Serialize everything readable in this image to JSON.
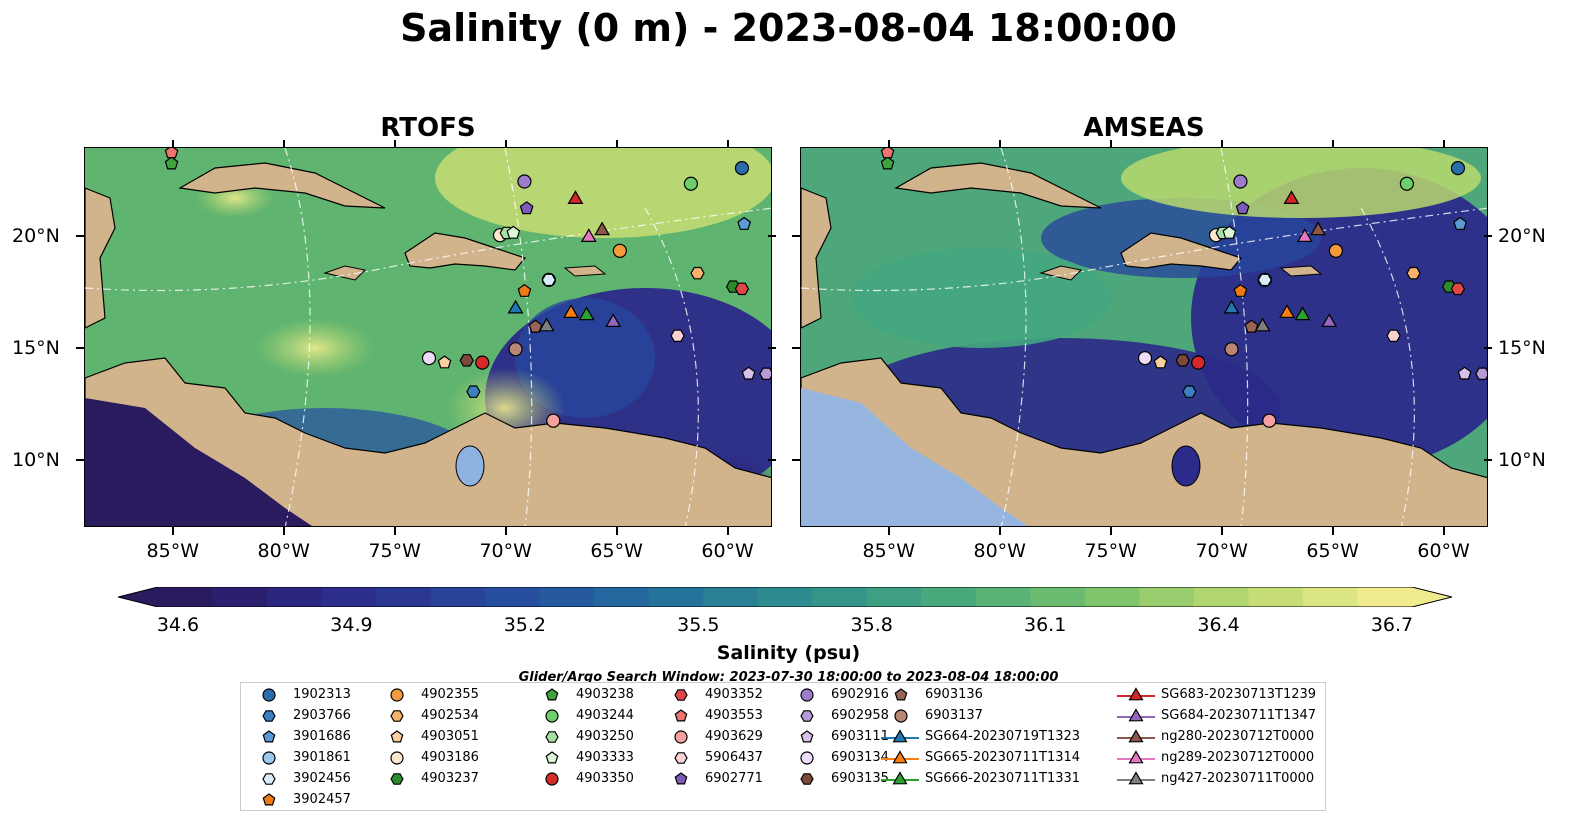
{
  "title": "Salinity (0 m) - 2023-08-04 18:00:00",
  "panels": [
    {
      "title": "RTOFS"
    },
    {
      "title": "AMSEAS"
    }
  ],
  "axes": {
    "lon_labels": [
      "85°W",
      "80°W",
      "75°W",
      "70°W",
      "65°W",
      "60°W"
    ],
    "lat_labels": [
      "20°N",
      "15°N",
      "10°N"
    ]
  },
  "colorbar": {
    "label": "Salinity (psu)",
    "ticks": [
      "34.6",
      "34.9",
      "35.2",
      "35.5",
      "35.8",
      "36.1",
      "36.4",
      "36.7"
    ],
    "colors": [
      "#2a1b5f",
      "#2c2a8a",
      "#28479e",
      "#226a9e",
      "#2e8b8f",
      "#44a77f",
      "#73c06b",
      "#b8d86f",
      "#f0ec8e"
    ]
  },
  "search_window": "Glider/Argo Search Window: 2023-07-30 18:00:00 to 2023-08-04 18:00:00",
  "legend": {
    "columns": [
      [
        {
          "label": "1902313",
          "marker": "circle",
          "color": "#2b6cad"
        },
        {
          "label": "2903766",
          "marker": "hexagon",
          "color": "#3d7fbf"
        },
        {
          "label": "3901686",
          "marker": "pentagon",
          "color": "#5b9bd5"
        },
        {
          "label": "3901861",
          "marker": "circle",
          "color": "#9cc8ee"
        },
        {
          "label": "3902456",
          "marker": "hexagon",
          "color": "#d8ecfb"
        },
        {
          "label": "3902457",
          "marker": "pentagon",
          "color": "#f07b14"
        }
      ],
      [
        {
          "label": "4902355",
          "marker": "circle",
          "color": "#f39a3c"
        },
        {
          "label": "4902534",
          "marker": "hexagon",
          "color": "#f7b26e"
        },
        {
          "label": "4903051",
          "marker": "pentagon",
          "color": "#fbd0a0"
        },
        {
          "label": "4903186",
          "marker": "circle",
          "color": "#fde8cc"
        },
        {
          "label": "4903237",
          "marker": "hexagon",
          "color": "#2d8a2d"
        }
      ],
      [
        {
          "label": "4903238",
          "marker": "pentagon",
          "color": "#3ea33e"
        },
        {
          "label": "4903244",
          "marker": "circle",
          "color": "#6ccf6c"
        },
        {
          "label": "4903250",
          "marker": "hexagon",
          "color": "#a6e3a0"
        },
        {
          "label": "4903333",
          "marker": "pentagon",
          "color": "#dcf5d4"
        },
        {
          "label": "4903350",
          "marker": "circle",
          "color": "#d42a2a"
        }
      ],
      [
        {
          "label": "4903352",
          "marker": "hexagon",
          "color": "#e04848"
        },
        {
          "label": "4903553",
          "marker": "pentagon",
          "color": "#ee7373"
        },
        {
          "label": "4903629",
          "marker": "circle",
          "color": "#f4a0a0"
        },
        {
          "label": "5906437",
          "marker": "hexagon",
          "color": "#fbd2d2"
        },
        {
          "label": "6902771",
          "marker": "pentagon",
          "color": "#7b5cb8"
        }
      ],
      [
        {
          "label": "6902916",
          "marker": "circle",
          "color": "#9c7ccb"
        },
        {
          "label": "6902958",
          "marker": "hexagon",
          "color": "#b89ad9"
        },
        {
          "label": "6903111",
          "marker": "pentagon",
          "color": "#d6c2ea"
        },
        {
          "label": "6903134",
          "marker": "circle",
          "color": "#ecdcf7"
        },
        {
          "label": "6903135",
          "marker": "hexagon",
          "color": "#7b4a38"
        }
      ],
      [
        {
          "label": "6903136",
          "marker": "pentagon",
          "color": "#986454"
        },
        {
          "label": "6903137",
          "marker": "circle",
          "color": "#b98575"
        },
        {
          "label": "SG664-20230719T1323",
          "marker": "triangle-line",
          "color": "#1f77b4"
        },
        {
          "label": "SG665-20230711T1314",
          "marker": "triangle-line",
          "color": "#ff7f0e"
        },
        {
          "label": "SG666-20230711T1331",
          "marker": "triangle-line",
          "color": "#2ca02c"
        }
      ],
      [
        {
          "label": "SG683-20230713T1239",
          "marker": "triangle-line",
          "color": "#d62728"
        },
        {
          "label": "SG684-20230711T1347",
          "marker": "triangle-line",
          "color": "#9467bd"
        },
        {
          "label": "ng280-20230712T0000",
          "marker": "triangle-line",
          "color": "#8c564b"
        },
        {
          "label": "ng289-20230712T0000",
          "marker": "triangle-line",
          "color": "#e377c2"
        },
        {
          "label": "ng427-20230711T0000",
          "marker": "triangle-line",
          "color": "#7f7f7f"
        }
      ]
    ]
  },
  "map_markers": [
    {
      "id": "1902313",
      "lon": -59.4,
      "lat": 23.1
    },
    {
      "id": "2903766",
      "lon": -71.5,
      "lat": 13.1
    },
    {
      "id": "3901686",
      "lon": -59.3,
      "lat": 20.6
    },
    {
      "id": "3901861",
      "lon": -68.1,
      "lat": 18.1
    },
    {
      "id": "3902456",
      "lon": -68.1,
      "lat": 18.1
    },
    {
      "id": "3902457",
      "lon": -69.2,
      "lat": 17.6
    },
    {
      "id": "4902355",
      "lon": -64.9,
      "lat": 19.4
    },
    {
      "id": "4902534",
      "lon": -61.4,
      "lat": 18.4
    },
    {
      "id": "4903051",
      "lon": -72.8,
      "lat": 14.4
    },
    {
      "id": "4903186",
      "lon": -70.3,
      "lat": 20.1
    },
    {
      "id": "4903237",
      "lon": -59.8,
      "lat": 17.8
    },
    {
      "id": "4903238",
      "lon": -85.1,
      "lat": 23.3
    },
    {
      "id": "4903244",
      "lon": -61.7,
      "lat": 22.4
    },
    {
      "id": "4903250",
      "lon": -70.0,
      "lat": 20.2
    },
    {
      "id": "4903333",
      "lon": -69.7,
      "lat": 20.2
    },
    {
      "id": "4903350",
      "lon": -71.1,
      "lat": 14.4
    },
    {
      "id": "4903352",
      "lon": -59.4,
      "lat": 17.7
    },
    {
      "id": "4903553",
      "lon": -85.1,
      "lat": 23.8
    },
    {
      "id": "4903629",
      "lon": -67.9,
      "lat": 11.8
    },
    {
      "id": "5906437",
      "lon": -62.3,
      "lat": 15.6
    },
    {
      "id": "6902771",
      "lon": -69.1,
      "lat": 21.3
    },
    {
      "id": "6902916",
      "lon": -69.2,
      "lat": 22.5
    },
    {
      "id": "6902958",
      "lon": -58.3,
      "lat": 13.9
    },
    {
      "id": "6903111",
      "lon": -59.1,
      "lat": 13.9
    },
    {
      "id": "6903134",
      "lon": -73.5,
      "lat": 14.6
    },
    {
      "id": "6903135",
      "lon": -71.8,
      "lat": 14.5
    },
    {
      "id": "6903136",
      "lon": -68.7,
      "lat": 16.0
    },
    {
      "id": "6903137",
      "lon": -69.6,
      "lat": 15.0
    },
    {
      "id": "SG664-20230719T1323",
      "lon": -69.6,
      "lat": 16.8
    },
    {
      "id": "SG665-20230711T1314",
      "lon": -67.1,
      "lat": 16.6
    },
    {
      "id": "SG666-20230711T1331",
      "lon": -66.4,
      "lat": 16.5
    },
    {
      "id": "SG683-20230713T1239",
      "lon": -66.9,
      "lat": 21.7
    },
    {
      "id": "SG684-20230711T1347",
      "lon": -65.2,
      "lat": 16.2
    },
    {
      "id": "ng280-20230712T0000",
      "lon": -65.7,
      "lat": 20.3
    },
    {
      "id": "ng289-20230712T0000",
      "lon": -66.3,
      "lat": 20.0
    },
    {
      "id": "ng427-20230711T0000",
      "lon": -68.2,
      "lat": 16.0
    }
  ]
}
